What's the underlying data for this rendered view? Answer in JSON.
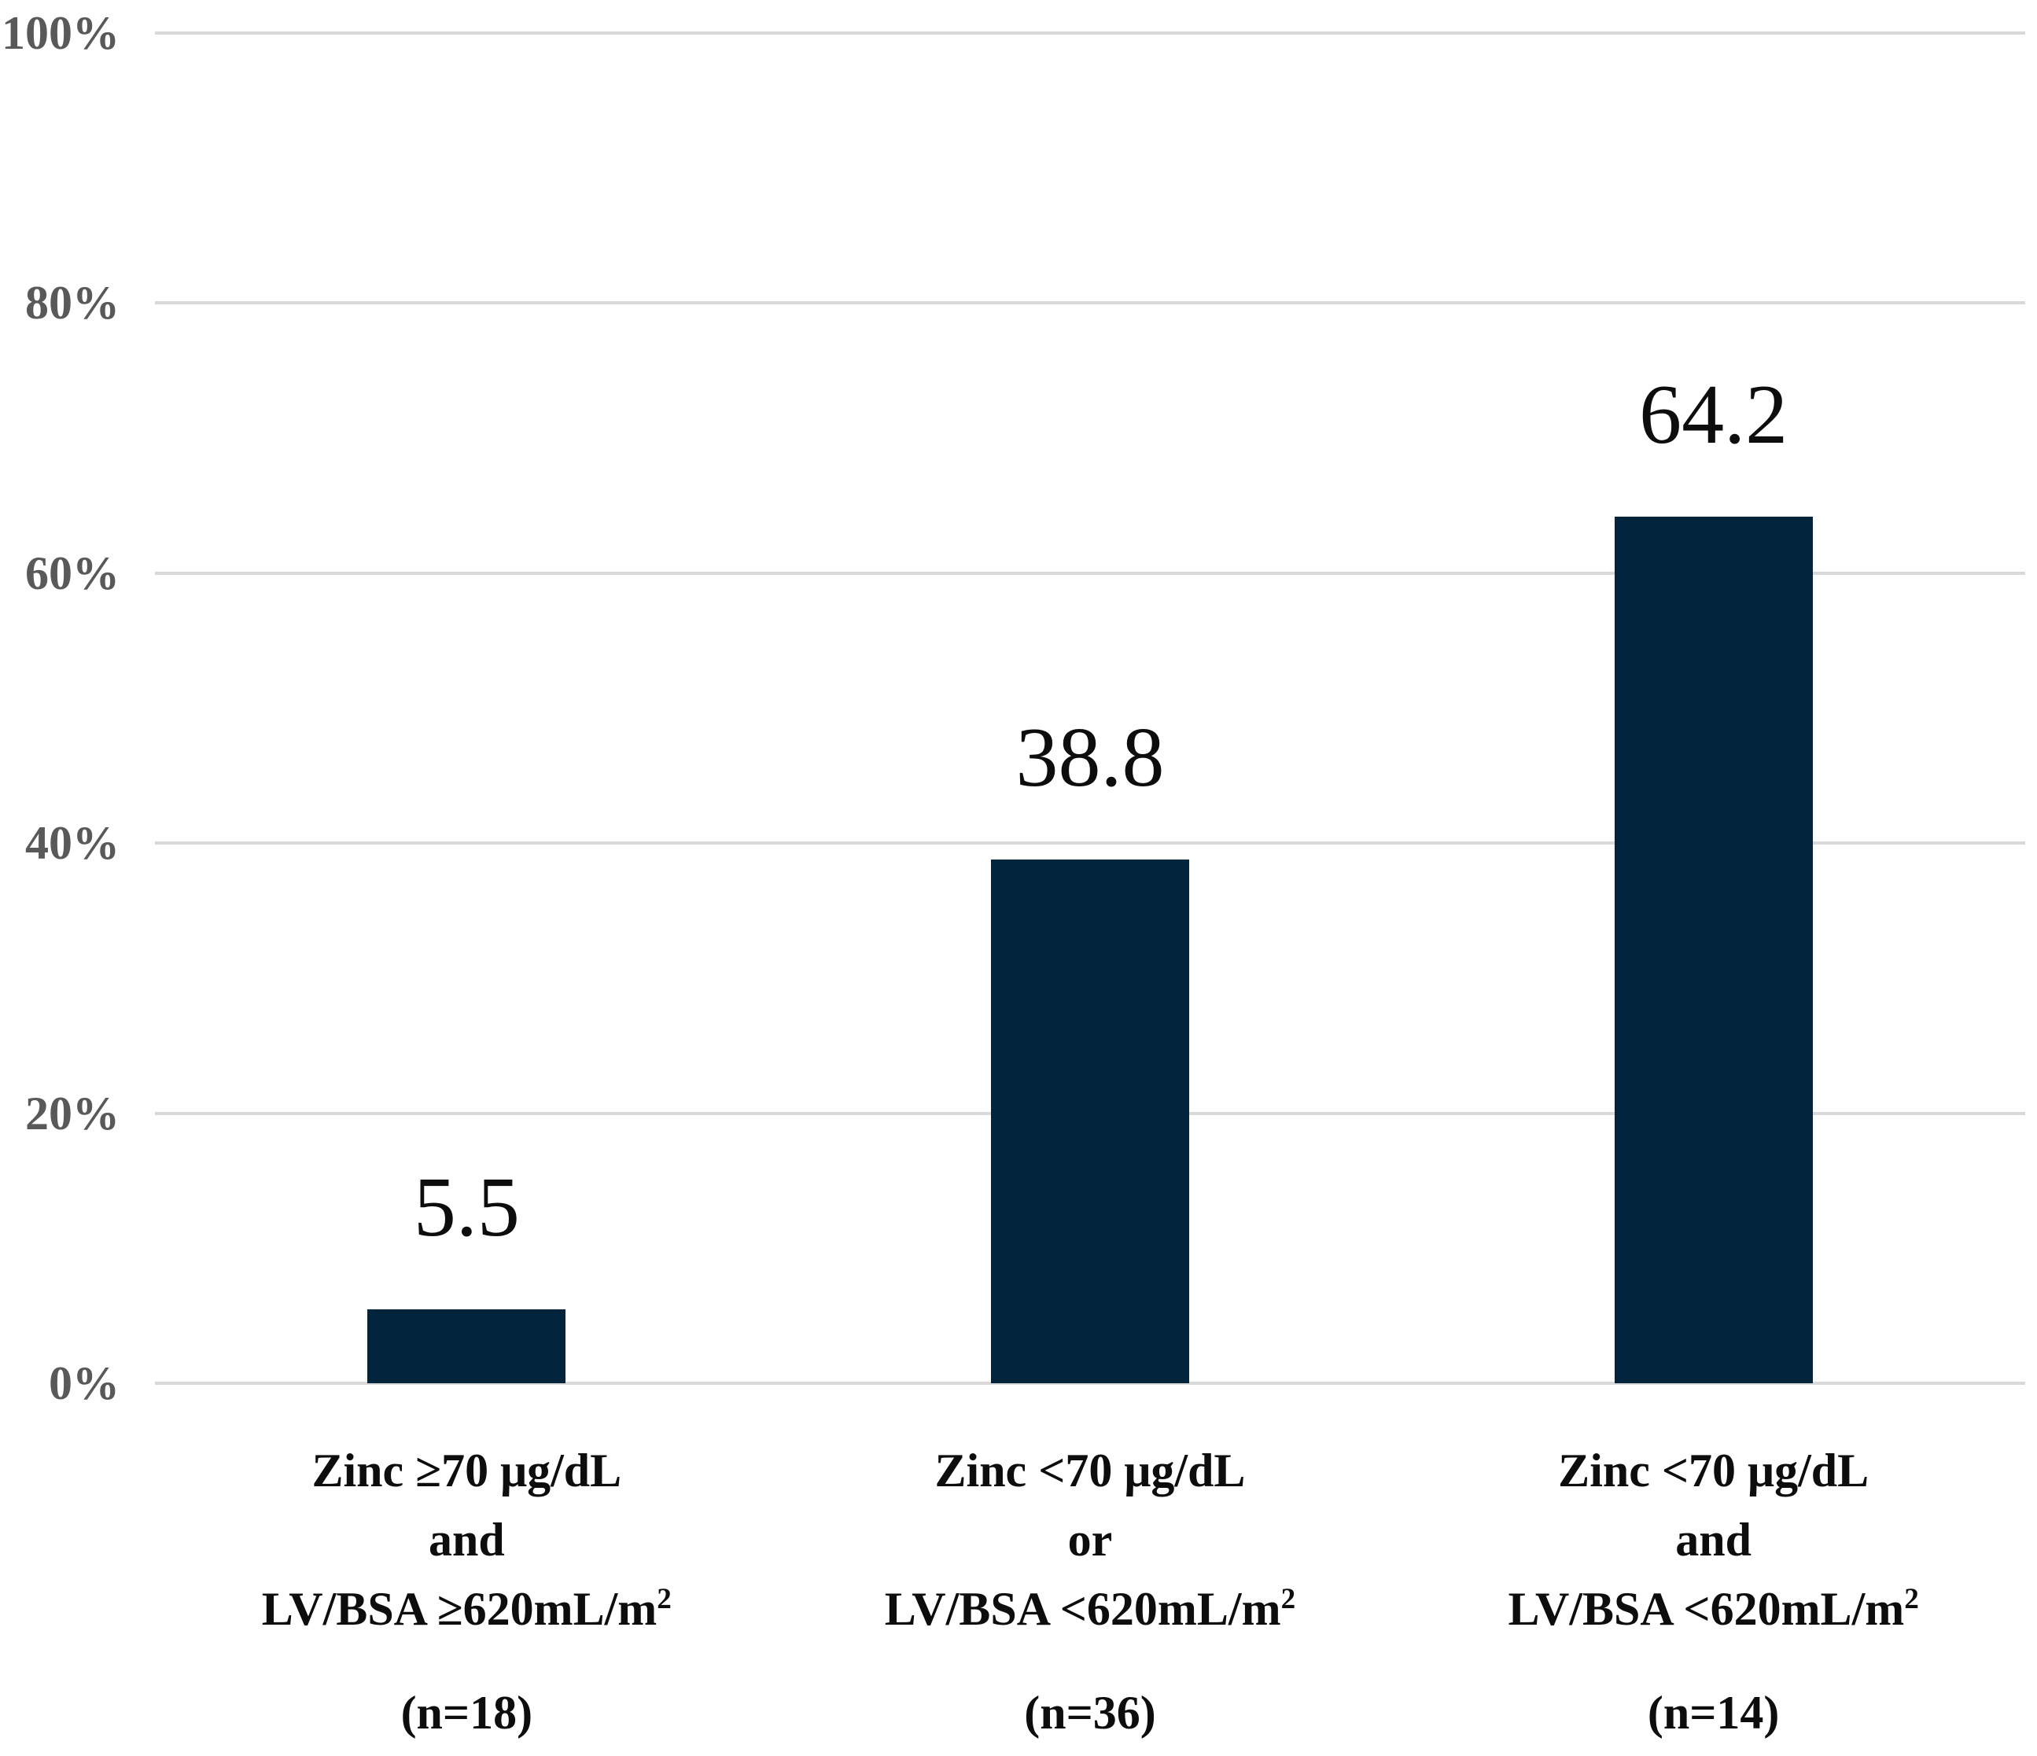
{
  "figure": {
    "background": "#ffffff"
  },
  "chart_data": {
    "type": "bar",
    "title": "",
    "xlabel": "",
    "ylabel": "",
    "ylim": [
      0,
      100
    ],
    "grid": true,
    "legend": false,
    "y_unit": "%",
    "y_ticks": [
      {
        "label": "100%",
        "value": 100
      },
      {
        "label": "80%",
        "value": 80
      },
      {
        "label": "60%",
        "value": 60
      },
      {
        "label": "40%",
        "value": 40
      },
      {
        "label": "20%",
        "value": 20
      },
      {
        "label": "0%",
        "value": 0
      }
    ],
    "categories": [
      {
        "line1": "Zinc ≥70 μg/dL",
        "line2": "and",
        "line3": "LV/BSA ≥620mL/m",
        "line3_superscript": "2",
        "n_label": "(n=18)",
        "value": 5.5,
        "value_label": "5.5"
      },
      {
        "line1": "Zinc <70 μg/dL",
        "line2": "or",
        "line3": "LV/BSA <620mL/m",
        "line3_superscript": "2",
        "n_label": "(n=36)",
        "value": 38.8,
        "value_label": "38.8"
      },
      {
        "line1": "Zinc <70 μg/dL",
        "line2": "and",
        "line3": "LV/BSA <620mL/m",
        "line3_superscript": "2",
        "n_label": "(n=14)",
        "value": 64.2,
        "value_label": "64.2"
      }
    ],
    "colors": {
      "bar": "#02243d",
      "gridline": "#d9d9d9",
      "tick_label": "#595959",
      "value_label": "#0d0d0d",
      "category_label": "#0d0d0d"
    }
  }
}
